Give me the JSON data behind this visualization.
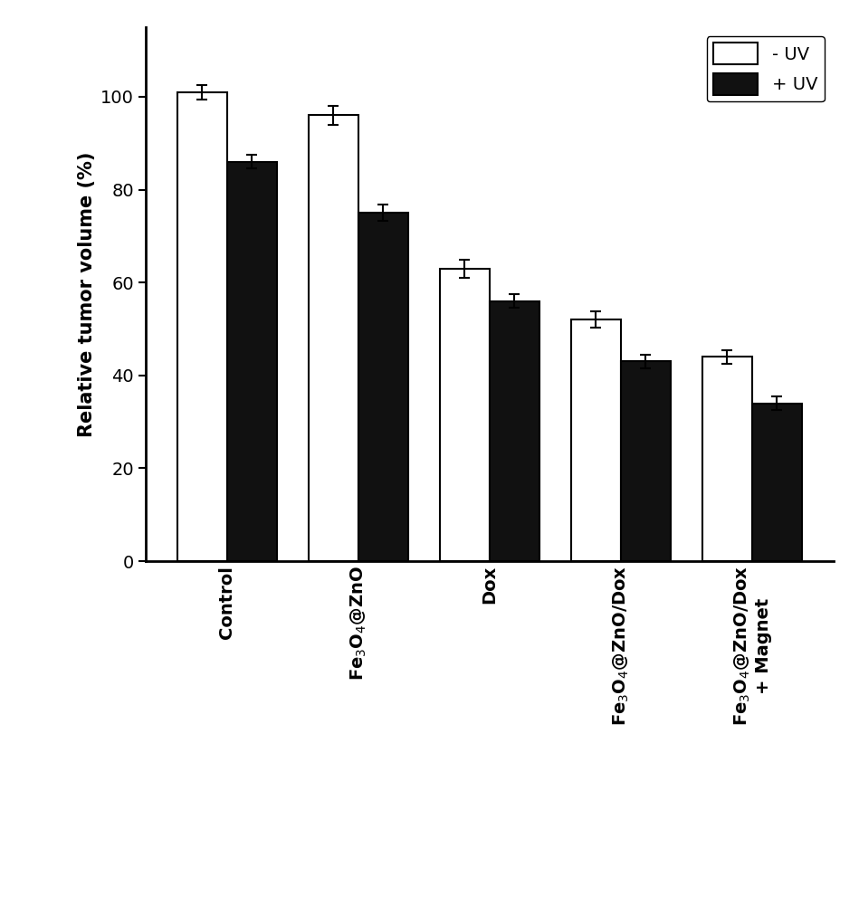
{
  "no_uv_values": [
    101,
    96,
    63,
    52,
    44
  ],
  "uv_values": [
    86,
    75,
    56,
    43,
    34
  ],
  "no_uv_errors": [
    1.5,
    2.0,
    2.0,
    1.8,
    1.5
  ],
  "uv_errors": [
    1.5,
    1.8,
    1.5,
    1.5,
    1.5
  ],
  "no_uv_color": "#ffffff",
  "uv_color": "#111111",
  "bar_edge_color": "#000000",
  "bar_width": 0.38,
  "ylabel": "Relative tumor volume (%)",
  "ylim": [
    0,
    115
  ],
  "yticks": [
    0,
    20,
    40,
    60,
    80,
    100
  ],
  "legend_labels": [
    "- UV",
    "+ UV"
  ],
  "background_color": "#ffffff",
  "axis_fontsize": 15,
  "tick_fontsize": 14,
  "legend_fontsize": 14
}
